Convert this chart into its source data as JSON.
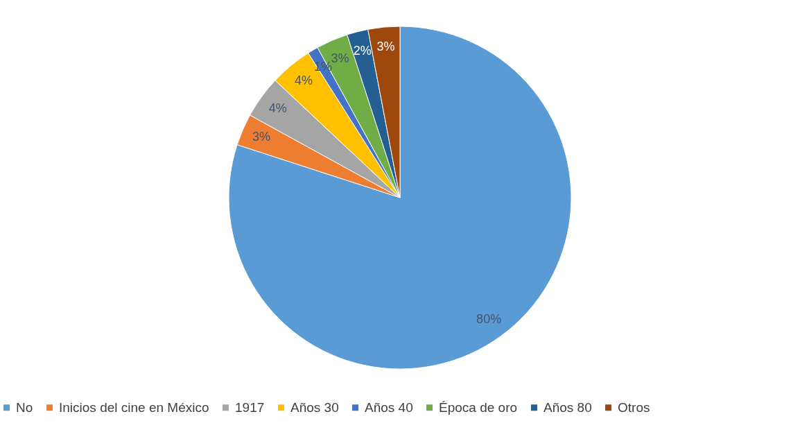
{
  "chart_data": {
    "type": "pie",
    "categories": [
      "No",
      "Inicios del cine en México",
      "1917",
      "Años 30",
      "Años 40",
      "Época de oro",
      "Años 80",
      "Otros"
    ],
    "values": [
      80,
      3,
      4,
      4,
      1,
      3,
      2,
      3
    ],
    "colors": [
      "#5b9bd5",
      "#ed7d31",
      "#a5a5a5",
      "#ffc000",
      "#4472c4",
      "#70ad47",
      "#255e91",
      "#9e480e"
    ],
    "value_labels": [
      "80%",
      "3%",
      "4%",
      "4%",
      "1%",
      "3%",
      "2%",
      "3%"
    ],
    "legend": "bottom"
  }
}
